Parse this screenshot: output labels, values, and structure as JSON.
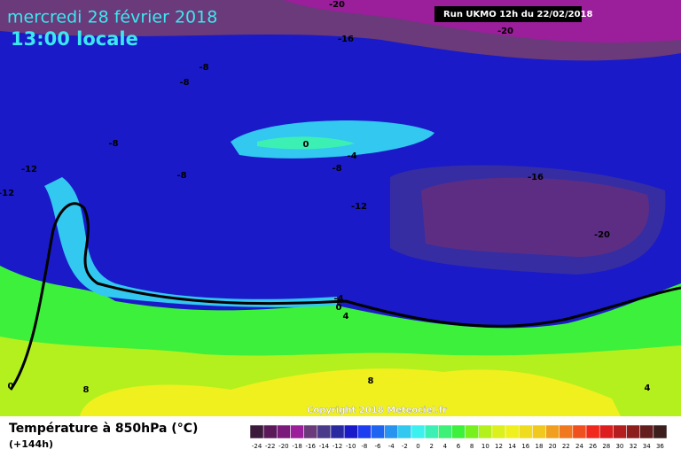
{
  "header": {
    "date": "mercredi 28 février 2018",
    "time": "13:00 locale",
    "run": "Run UKMO 12h du 22/02/2018"
  },
  "copyright": "Copyright 2018 Meteociel.fr",
  "footer": {
    "title": "Température à 850hPa (°C)",
    "lead": "(+144h)"
  },
  "contour_labels": [
    -20,
    -16,
    -20,
    -8,
    -8,
    -8,
    0,
    -4,
    -8,
    -8,
    -12,
    -12,
    -16,
    -12,
    -20,
    -4,
    0,
    4,
    0,
    8,
    8,
    4
  ],
  "colorbar": {
    "ticks": [
      -24,
      -22,
      -20,
      -18,
      -16,
      -14,
      -12,
      -10,
      -8,
      -6,
      -4,
      -2,
      0,
      2,
      4,
      6,
      8,
      10,
      12,
      14,
      16,
      18,
      20,
      22,
      24,
      26,
      28,
      30,
      32,
      34,
      36
    ],
    "colors": [
      "#3c1a3c",
      "#5a1a5a",
      "#7a1a7a",
      "#9b1e9b",
      "#6a3a7a",
      "#4a3a8a",
      "#2a2aa0",
      "#1a1ac8",
      "#1e3cf0",
      "#1e64f0",
      "#2894f0",
      "#32c8f0",
      "#3cf0f0",
      "#3cf0b4",
      "#3cf078",
      "#3cf03c",
      "#78f01e",
      "#b4f01e",
      "#dcf01e",
      "#f0f01e",
      "#f0dc1e",
      "#f0c81e",
      "#f0a01e",
      "#f0781e",
      "#f0501e",
      "#f0281e",
      "#dc1e1e",
      "#b41e1e",
      "#8c1e1e",
      "#641e1e",
      "#3c1e1e"
    ]
  }
}
